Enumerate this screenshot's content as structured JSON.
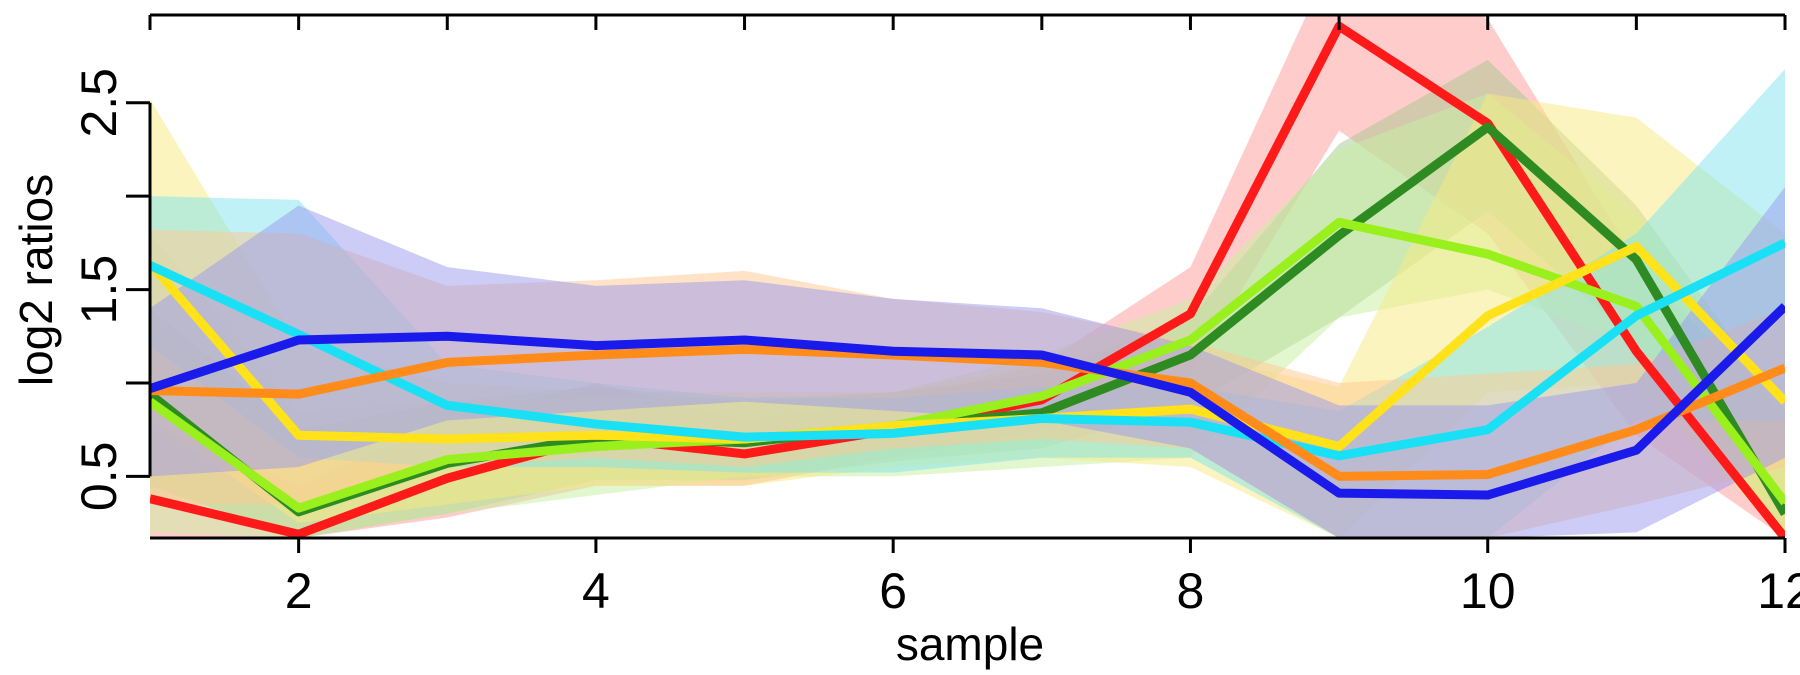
{
  "chart_data": {
    "type": "line",
    "xlabel": "sample",
    "ylabel": "log2 ratios",
    "xlim": [
      1,
      12
    ],
    "ylim": [
      0.17,
      2.97
    ],
    "x_ticks": [
      2,
      4,
      6,
      8,
      10,
      12
    ],
    "x_tick_labels": [
      "2",
      "4",
      "6",
      "8",
      "10",
      "12"
    ],
    "y_ticks": [
      0.5,
      1.0,
      1.5,
      2.0,
      2.5
    ],
    "y_tick_labels": [
      "0.5",
      "",
      "1.5",
      "",
      "2.5"
    ],
    "top_axis_ticks": [
      1,
      2,
      3,
      4,
      5,
      6,
      7,
      8,
      9,
      10,
      11,
      12
    ],
    "x": [
      1,
      2,
      3,
      4,
      5,
      6,
      7,
      8,
      9,
      10,
      11,
      12
    ],
    "series": [
      {
        "color": "#ff1a1a",
        "band_color": "#ff9a9a",
        "values": [
          0.38,
          0.19,
          0.49,
          0.71,
          0.62,
          0.75,
          0.91,
          1.37,
          2.91,
          2.39,
          1.17,
          0.17
        ],
        "upper": [
          0.8,
          0.45,
          0.8,
          1.0,
          0.8,
          0.9,
          1.1,
          1.62,
          3.35,
          2.95,
          1.65,
          0.8
        ],
        "lower": [
          0.17,
          0.17,
          0.28,
          0.45,
          0.45,
          0.6,
          0.75,
          1.05,
          2.35,
          1.8,
          0.72,
          0.17
        ]
      },
      {
        "color": "#2e8b22",
        "band_color": "#a8c890",
        "values": [
          0.94,
          0.31,
          0.57,
          0.71,
          0.68,
          0.77,
          0.84,
          1.15,
          1.79,
          2.37,
          1.66,
          0.3
        ],
        "upper": [
          1.4,
          0.75,
          0.9,
          0.98,
          0.9,
          0.95,
          1.05,
          1.35,
          2.28,
          2.73,
          1.95,
          0.85
        ],
        "lower": [
          0.45,
          0.17,
          0.3,
          0.48,
          0.48,
          0.58,
          0.65,
          0.88,
          1.35,
          1.92,
          1.22,
          0.17
        ]
      },
      {
        "color": "#99f01c",
        "band_color": "#c8f0a0",
        "values": [
          0.9,
          0.33,
          0.59,
          0.66,
          0.7,
          0.77,
          0.93,
          1.23,
          1.86,
          1.69,
          1.41,
          0.36
        ],
        "upper": [
          1.8,
          0.85,
          0.9,
          0.92,
          0.92,
          0.95,
          1.15,
          1.45,
          2.25,
          2.55,
          1.9,
          0.8
        ],
        "lower": [
          0.2,
          0.17,
          0.3,
          0.4,
          0.5,
          0.5,
          0.55,
          0.6,
          1.35,
          1.5,
          1.2,
          0.17
        ]
      },
      {
        "color": "#ffe21a",
        "band_color": "#f8ea80",
        "values": [
          1.64,
          0.72,
          0.7,
          0.72,
          0.7,
          0.77,
          0.81,
          0.86,
          0.66,
          1.36,
          1.73,
          0.9
        ],
        "upper": [
          2.52,
          1.2,
          1.0,
          0.95,
          0.95,
          0.95,
          1.1,
          1.15,
          0.98,
          2.55,
          2.42,
          1.8
        ],
        "lower": [
          0.8,
          0.25,
          0.35,
          0.45,
          0.45,
          0.55,
          0.6,
          0.55,
          0.17,
          0.95,
          1.0,
          0.17
        ]
      },
      {
        "color": "#1ae0f5",
        "band_color": "#80e4ee",
        "values": [
          1.63,
          1.26,
          0.88,
          0.78,
          0.71,
          0.73,
          0.81,
          0.79,
          0.61,
          0.75,
          1.36,
          1.75
        ],
        "upper": [
          2.0,
          1.98,
          1.1,
          1.0,
          0.92,
          0.92,
          0.98,
          0.98,
          0.85,
          1.3,
          1.8,
          2.68
        ],
        "lower": [
          1.2,
          0.6,
          0.55,
          0.55,
          0.52,
          0.52,
          0.6,
          0.6,
          0.17,
          0.17,
          0.8,
          0.8
        ]
      },
      {
        "color": "#ff8c1a",
        "band_color": "#ffc890",
        "values": [
          0.96,
          0.94,
          1.11,
          1.15,
          1.18,
          1.15,
          1.11,
          1.0,
          0.5,
          0.51,
          0.75,
          1.08
        ],
        "upper": [
          1.82,
          1.8,
          1.52,
          1.55,
          1.6,
          1.45,
          1.38,
          1.22,
          1.0,
          1.05,
          1.1,
          1.4
        ],
        "lower": [
          0.35,
          0.35,
          0.55,
          0.6,
          0.55,
          0.65,
          0.7,
          0.65,
          0.17,
          0.17,
          0.35,
          0.55
        ]
      },
      {
        "color": "#1a1aeb",
        "band_color": "#9a9aee",
        "values": [
          0.97,
          1.23,
          1.25,
          1.2,
          1.23,
          1.17,
          1.15,
          0.95,
          0.41,
          0.4,
          0.64,
          1.41
        ],
        "upper": [
          1.4,
          1.95,
          1.62,
          1.52,
          1.55,
          1.45,
          1.4,
          1.2,
          0.88,
          0.88,
          1.0,
          2.05
        ],
        "lower": [
          0.5,
          0.55,
          0.8,
          0.85,
          0.9,
          0.85,
          0.8,
          0.65,
          0.17,
          0.17,
          0.2,
          0.6
        ]
      }
    ]
  }
}
